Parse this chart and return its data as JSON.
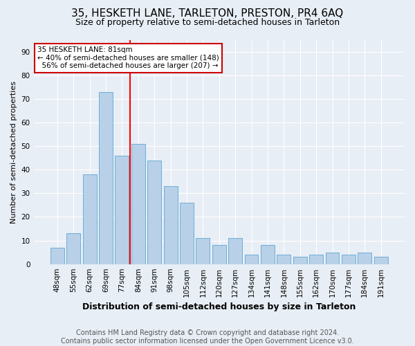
{
  "title": "35, HESKETH LANE, TARLETON, PRESTON, PR4 6AQ",
  "subtitle": "Size of property relative to semi-detached houses in Tarleton",
  "xlabel": "Distribution of semi-detached houses by size in Tarleton",
  "ylabel": "Number of semi-detached properties",
  "footer_line1": "Contains HM Land Registry data © Crown copyright and database right 2024.",
  "footer_line2": "Contains public sector information licensed under the Open Government Licence v3.0.",
  "categories": [
    "48sqm",
    "55sqm",
    "62sqm",
    "69sqm",
    "77sqm",
    "84sqm",
    "91sqm",
    "98sqm",
    "105sqm",
    "112sqm",
    "120sqm",
    "127sqm",
    "134sqm",
    "141sqm",
    "148sqm",
    "155sqm",
    "162sqm",
    "170sqm",
    "177sqm",
    "184sqm",
    "191sqm"
  ],
  "values": [
    7,
    13,
    38,
    73,
    46,
    51,
    44,
    33,
    26,
    11,
    8,
    11,
    4,
    8,
    4,
    3,
    4,
    5,
    4,
    5,
    3
  ],
  "bar_color": "#b8d0e8",
  "bar_edge_color": "#6baed6",
  "reference_line_label": "35 HESKETH LANE: 81sqm",
  "pct_smaller": 40,
  "count_smaller": 148,
  "pct_larger": 56,
  "count_larger": 207,
  "annotation_box_color": "#ffffff",
  "annotation_box_edge_color": "#cc0000",
  "ylim": [
    0,
    95
  ],
  "yticks": [
    0,
    10,
    20,
    30,
    40,
    50,
    60,
    70,
    80,
    90
  ],
  "bg_color": "#e8eef5",
  "grid_color": "#ffffff",
  "title_fontsize": 11,
  "subtitle_fontsize": 9,
  "xlabel_fontsize": 9,
  "ylabel_fontsize": 8,
  "tick_fontsize": 7.5,
  "footer_fontsize": 7,
  "annot_fontsize": 7.5
}
